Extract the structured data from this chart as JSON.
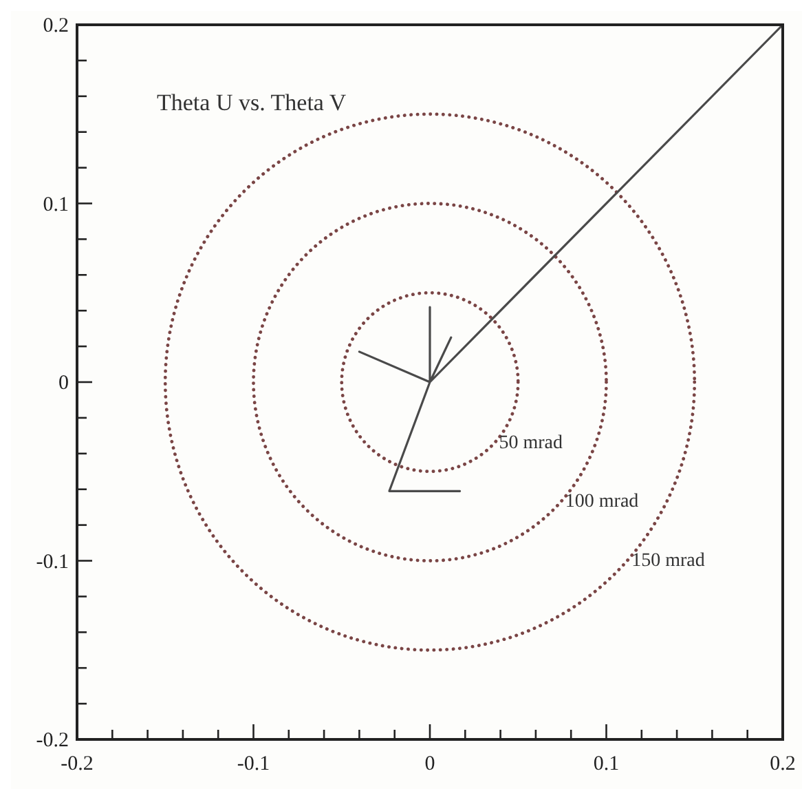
{
  "chart_data": {
    "type": "line",
    "title": "Theta U vs. Theta V",
    "xlim": [
      -0.2,
      0.2
    ],
    "ylim": [
      -0.2,
      0.2
    ],
    "xticks": [
      -0.2,
      {
        "value": -0.18,
        "label": null
      },
      {
        "value": -0.16,
        "label": null
      },
      {
        "value": -0.14,
        "label": null
      },
      {
        "value": -0.12,
        "label": null
      },
      -0.1,
      {
        "value": -0.08,
        "label": null
      },
      {
        "value": -0.06,
        "label": null
      },
      {
        "value": -0.04,
        "label": null
      },
      {
        "value": -0.02,
        "label": null
      },
      0,
      {
        "value": 0.02,
        "label": null
      },
      {
        "value": 0.04,
        "label": null
      },
      {
        "value": 0.06,
        "label": null
      },
      {
        "value": 0.08,
        "label": null
      },
      0.1,
      {
        "value": 0.12,
        "label": null
      },
      {
        "value": 0.14,
        "label": null
      },
      {
        "value": 0.16,
        "label": null
      },
      {
        "value": 0.18,
        "label": null
      },
      0.2
    ],
    "yticks": [
      -0.2,
      {
        "value": -0.18,
        "label": null
      },
      {
        "value": -0.16,
        "label": null
      },
      {
        "value": -0.14,
        "label": null
      },
      {
        "value": -0.12,
        "label": null
      },
      -0.1,
      {
        "value": -0.08,
        "label": null
      },
      {
        "value": -0.06,
        "label": null
      },
      {
        "value": -0.04,
        "label": null
      },
      {
        "value": -0.02,
        "label": null
      },
      0,
      {
        "value": 0.02,
        "label": null
      },
      {
        "value": 0.04,
        "label": null
      },
      {
        "value": 0.06,
        "label": null
      },
      {
        "value": 0.08,
        "label": null
      },
      0.1,
      {
        "value": 0.12,
        "label": null
      },
      {
        "value": 0.14,
        "label": null
      },
      {
        "value": 0.16,
        "label": null
      },
      {
        "value": 0.18,
        "label": null
      },
      0.2
    ],
    "grid": false,
    "series": [
      {
        "color": "#4a4a4a",
        "line_style": "solid",
        "x": [
          0.2,
          0,
          0,
          0,
          0.012,
          0,
          -0.04,
          0,
          -0.023,
          0.017
        ],
        "values": [
          0.2,
          0,
          0.042,
          0,
          0.025,
          0,
          0.017,
          0,
          -0.061,
          -0.061
        ]
      }
    ],
    "annotations": [
      "50 mrad",
      "100 mrad",
      "150 mrad"
    ]
  }
}
